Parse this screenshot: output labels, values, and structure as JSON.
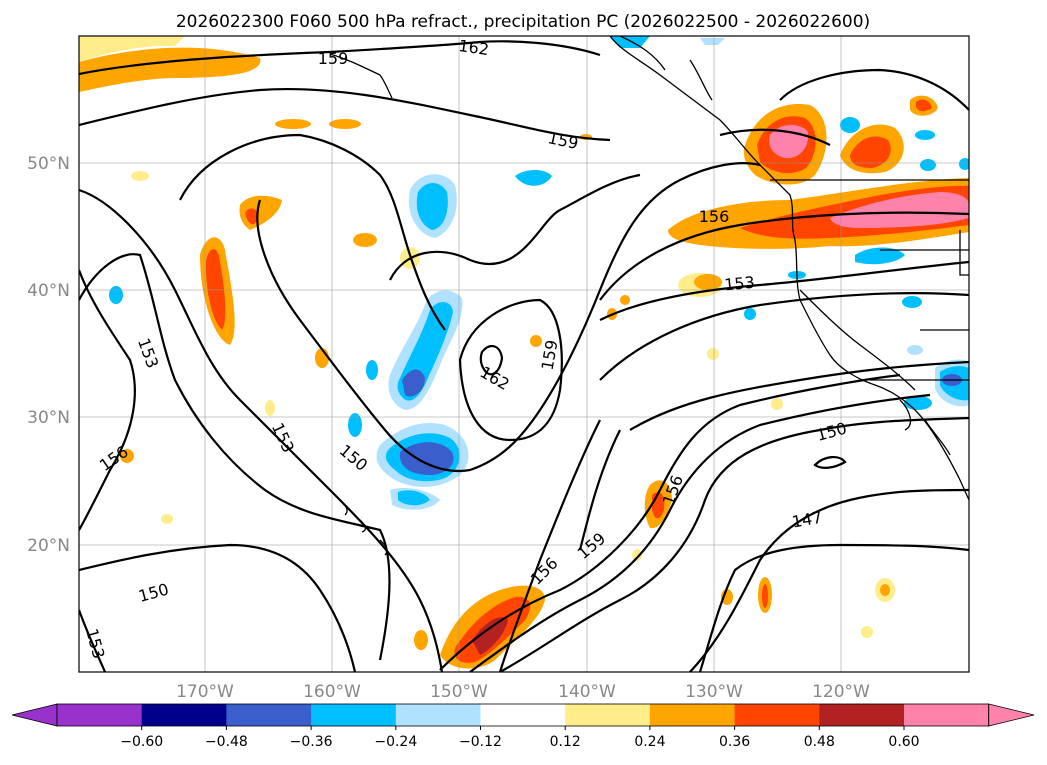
{
  "title": "2026022300 F060 500 hPa refract., precipitation PC (2026022500 - 2026022600)",
  "lat_labels": [
    "50°N",
    "40°N",
    "30°N",
    "20°N"
  ],
  "lon_labels": [
    "170°W",
    "160°W",
    "150°W",
    "140°W",
    "130°W",
    "120°W"
  ],
  "contour_labels": [
    "162",
    "159",
    "159",
    "156",
    "153",
    "153",
    "156",
    "150",
    "162",
    "159",
    "153",
    "150",
    "156",
    "159",
    "156",
    "147",
    "150",
    "153"
  ],
  "colorbar": {
    "ticks": [
      "−0.60",
      "−0.48",
      "−0.36",
      "−0.24",
      "−0.12",
      "0.12",
      "0.24",
      "0.36",
      "0.48",
      "0.60"
    ],
    "colors": [
      "#9932cc",
      "#00008b",
      "#3a5fcd",
      "#00bfff",
      "#b0e2ff",
      "#ffffff",
      "#ffec8b",
      "#ffa500",
      "#ff4500",
      "#b22222",
      "#ff82ab",
      "#ff82ab"
    ]
  }
}
